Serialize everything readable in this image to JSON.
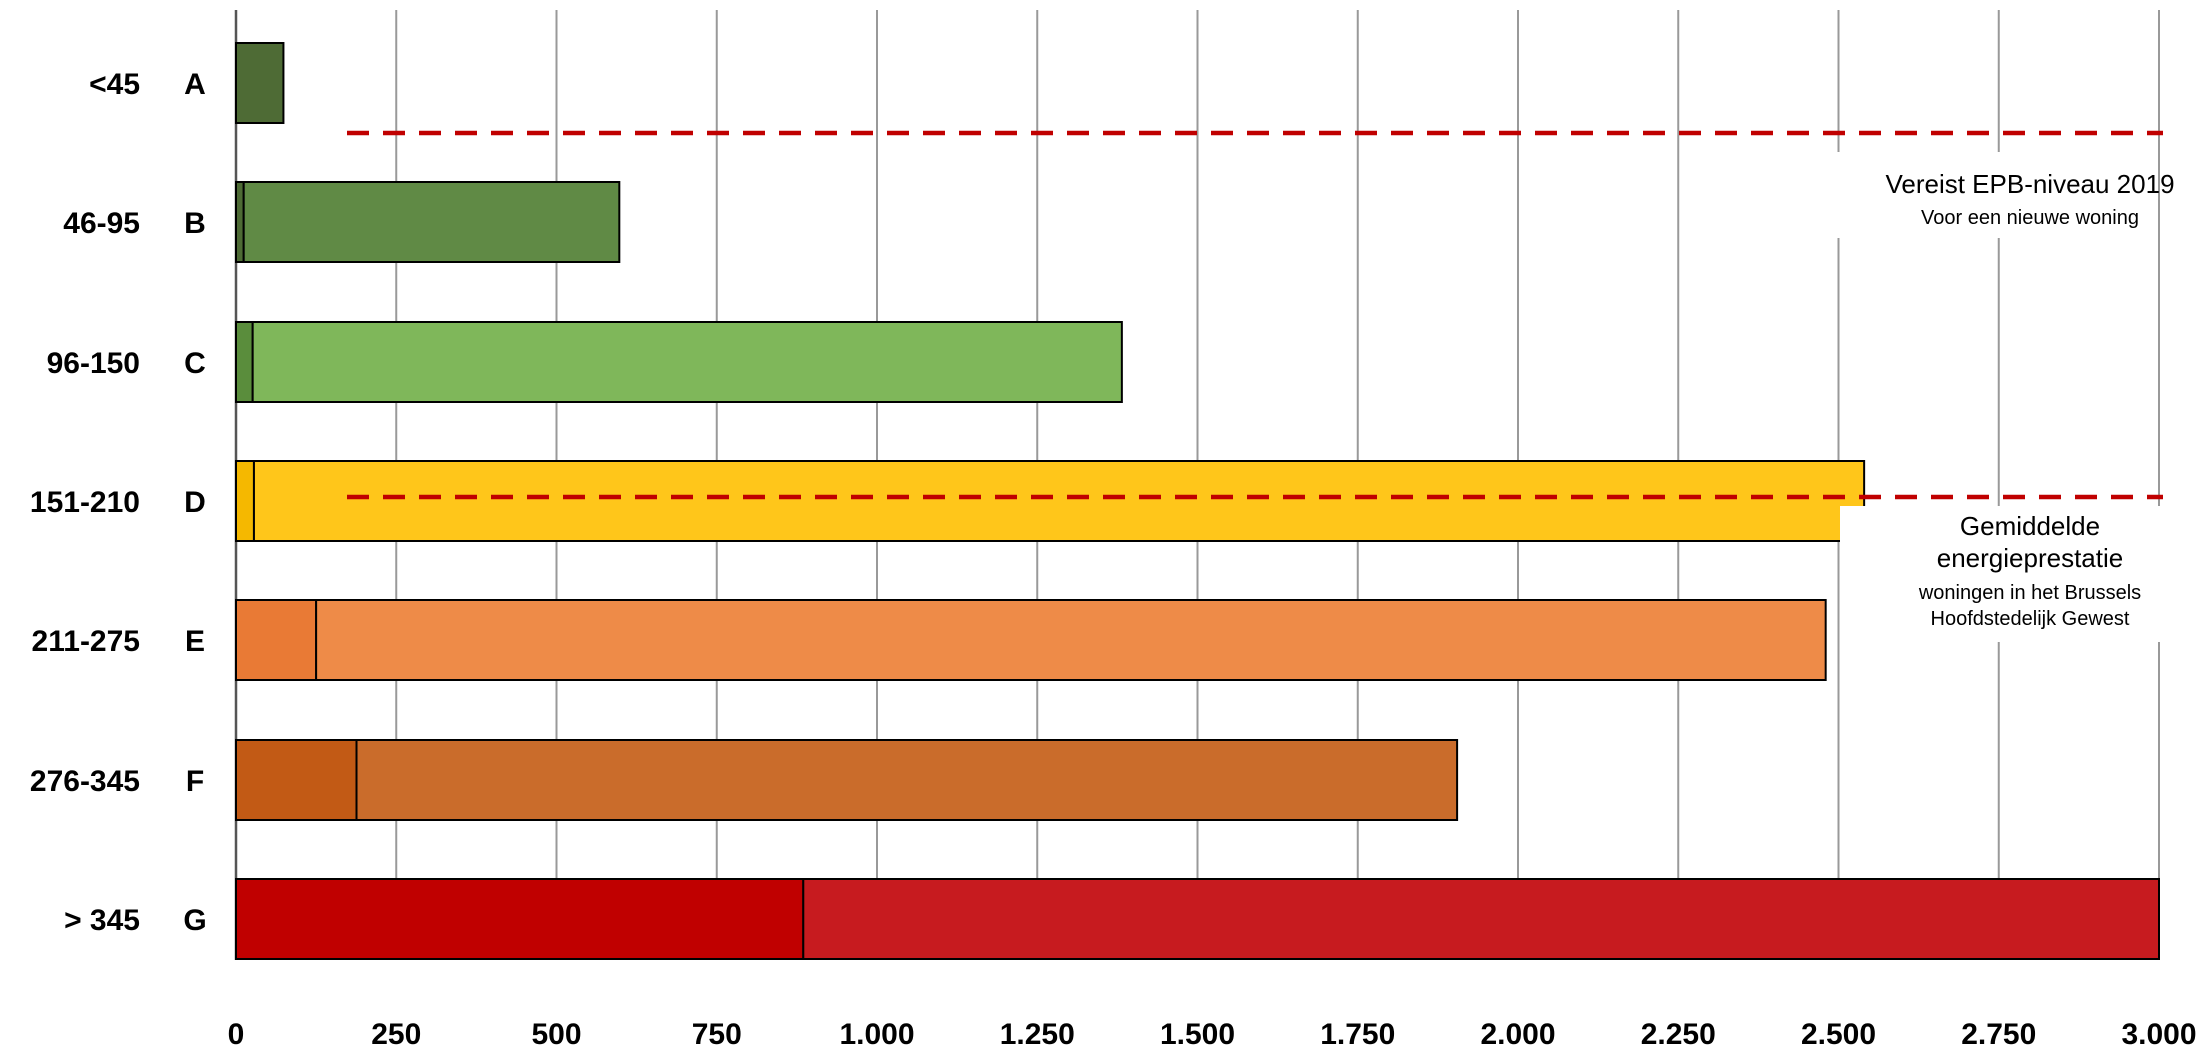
{
  "chart_data": {
    "type": "bar",
    "orientation": "horizontal",
    "stacked": true,
    "xlim": [
      0,
      3000
    ],
    "x_ticks": [
      0,
      250,
      500,
      750,
      1000,
      1250,
      1500,
      1750,
      2000,
      2250,
      2500,
      2750,
      3000
    ],
    "x_tick_labels": [
      "0",
      "250",
      "500",
      "750",
      "1.000",
      "1.250",
      "1.500",
      "1.750",
      "2.000",
      "2.250",
      "2.500",
      "2.750",
      "3.000"
    ],
    "grid": "vertical",
    "categories": [
      {
        "range": "<45",
        "letter": "A",
        "segments": [
          74
        ],
        "colors": [
          "#4E6B35"
        ]
      },
      {
        "range": "46-95",
        "letter": "B",
        "segments": [
          12,
          586
        ],
        "colors": [
          "#4E6B35",
          "#608A45"
        ]
      },
      {
        "range": "96-150",
        "letter": "C",
        "segments": [
          26,
          1356
        ],
        "colors": [
          "#5A8D3C",
          "#7FB75A"
        ]
      },
      {
        "range": "151-210",
        "letter": "D",
        "segments": [
          28,
          2512
        ],
        "colors": [
          "#F5B800",
          "#FFC61A"
        ]
      },
      {
        "range": "211-275",
        "letter": "E",
        "segments": [
          125,
          2355
        ],
        "colors": [
          "#E97A35",
          "#EE8B48"
        ]
      },
      {
        "range": "276-345",
        "letter": "F",
        "segments": [
          188,
          1717
        ],
        "colors": [
          "#C25A15",
          "#CA6C2B"
        ]
      },
      {
        "range": "> 345",
        "letter": "G",
        "segments": [
          885,
          2115
        ],
        "colors": [
          "#C00000",
          "#C71B1F"
        ]
      }
    ],
    "reference_lines": [
      {
        "between_rows": [
          "A",
          "B"
        ],
        "color": "#C00000",
        "style": "dashed",
        "label_main": "Vereist EPB-niveau 2019",
        "label_sub": [
          "Voor een nieuwe woning"
        ]
      },
      {
        "row": "D",
        "color": "#C00000",
        "style": "dashed",
        "label_main": [
          "Gemiddelde",
          "energieprestatie"
        ],
        "label_sub": [
          "woningen in het Brussels",
          "Hoofdstedelijk Gewest"
        ]
      }
    ]
  }
}
